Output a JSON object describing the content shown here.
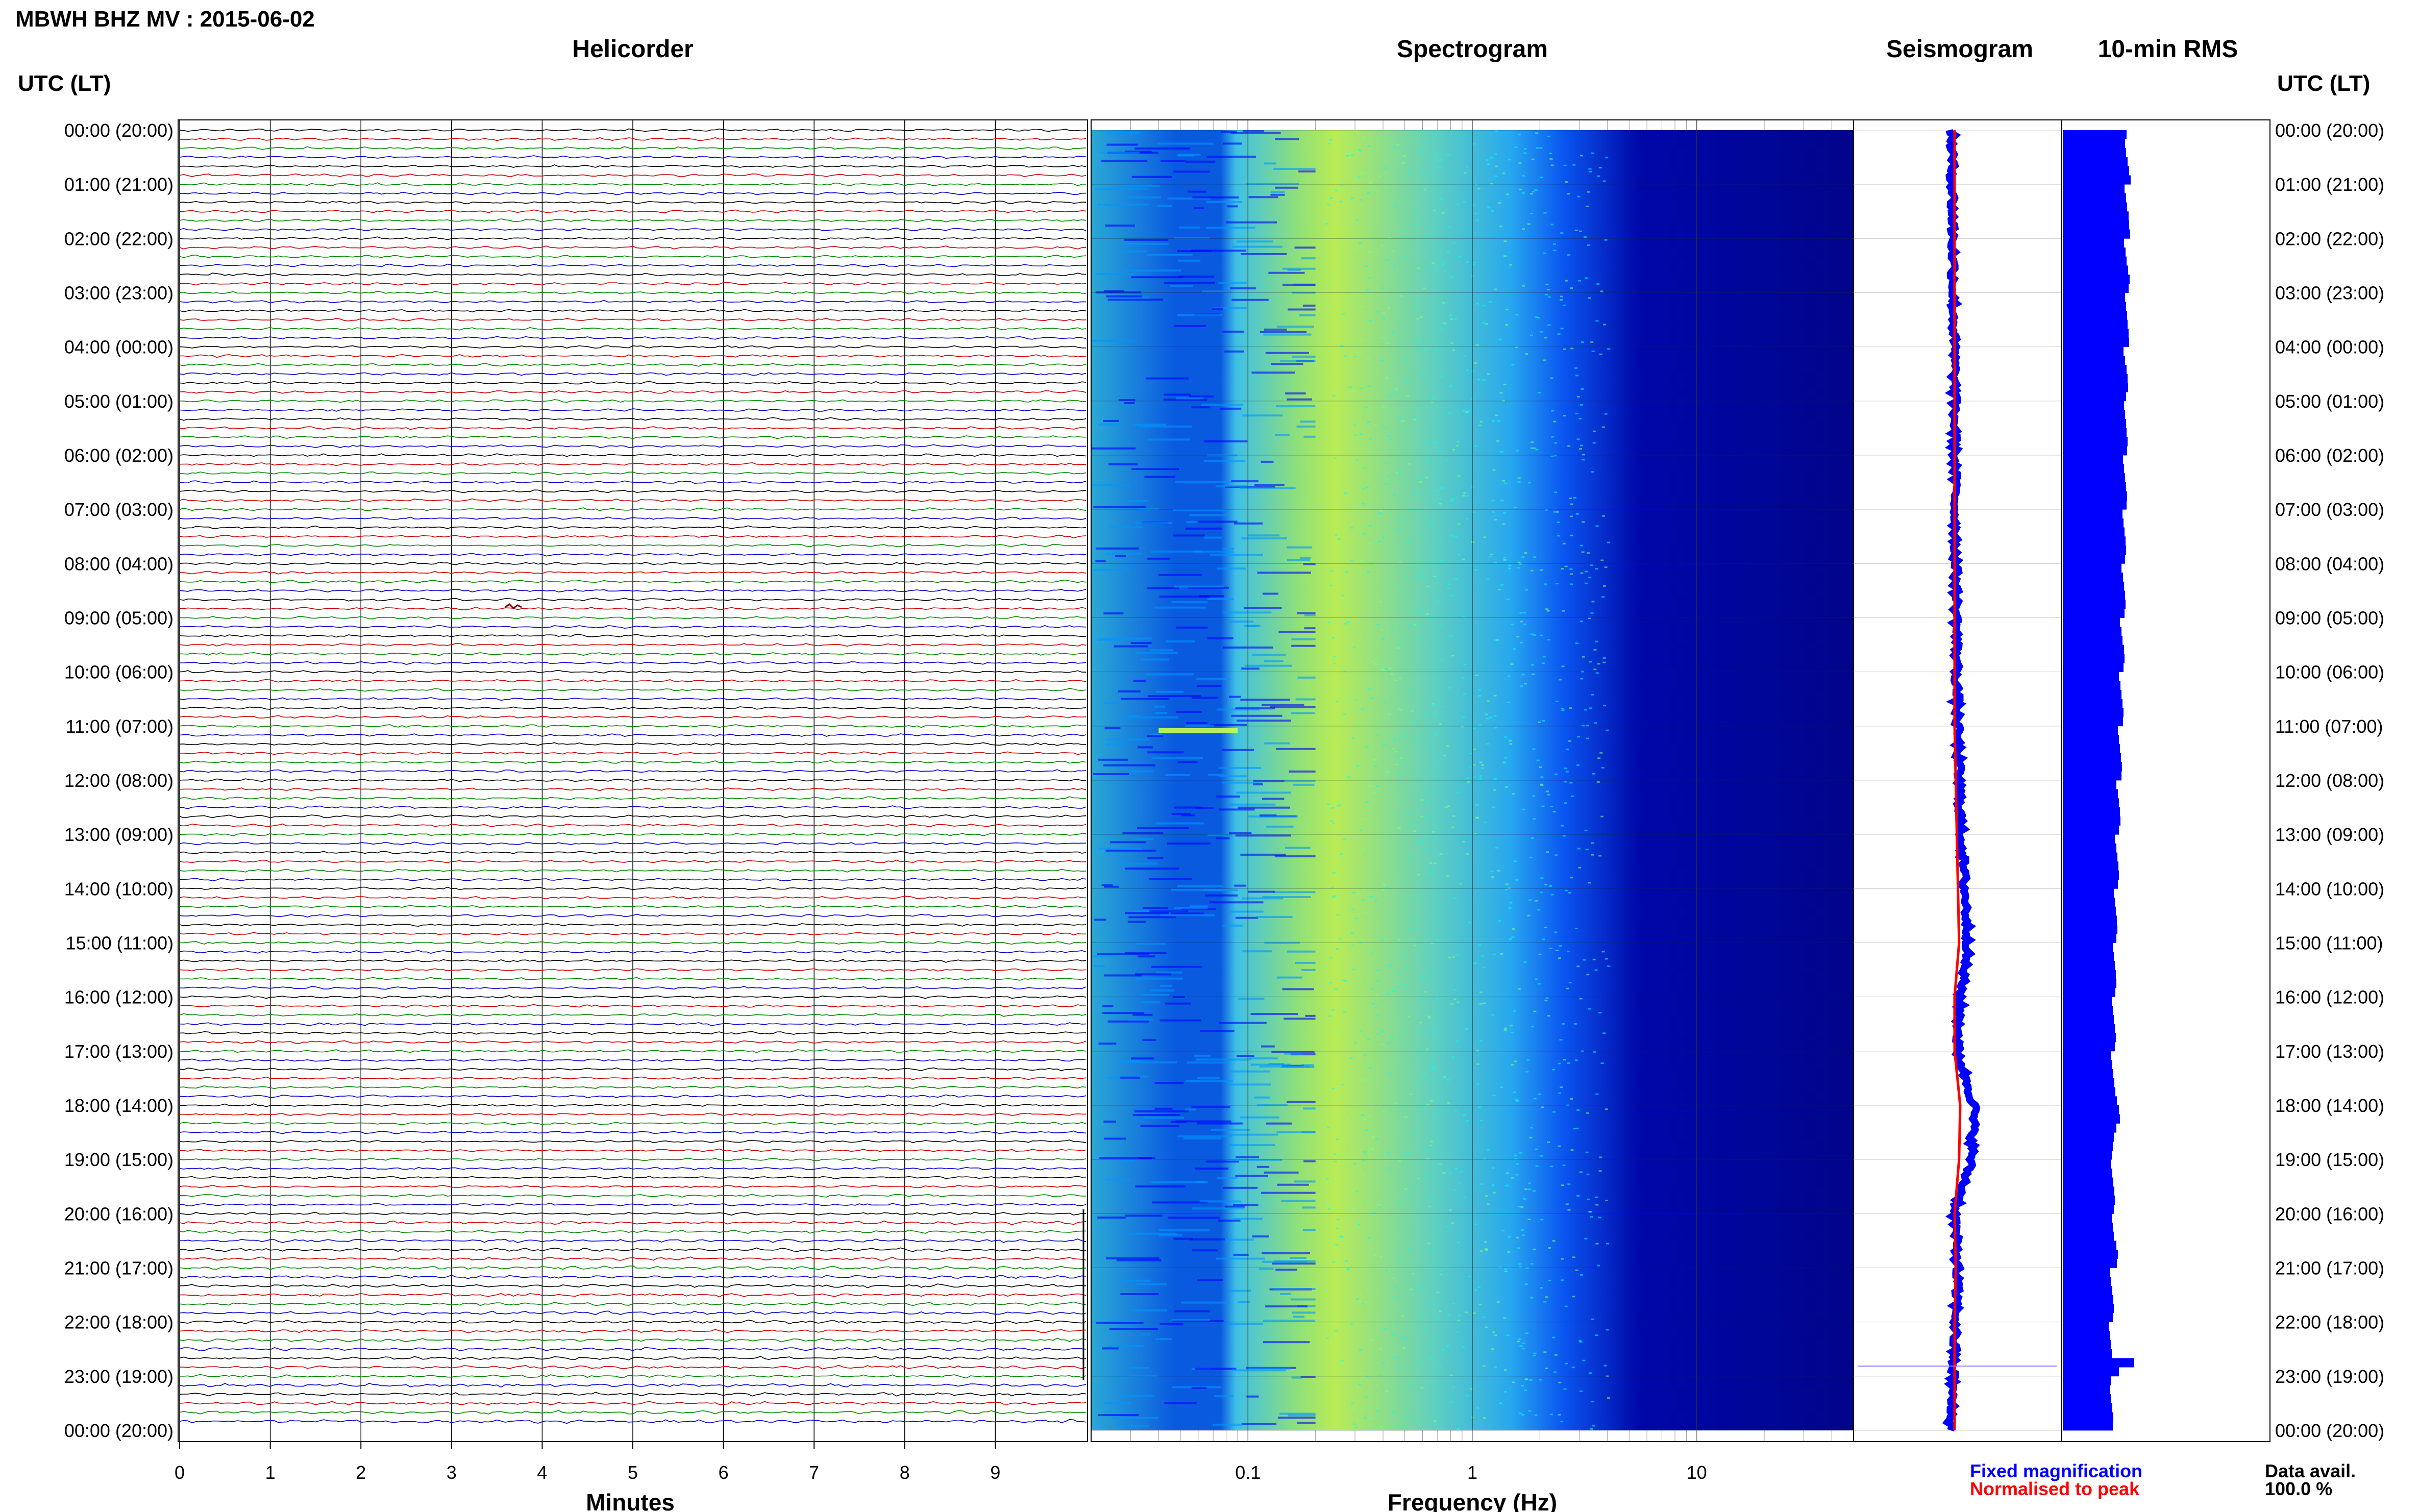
{
  "header": {
    "title": "MBWH BHZ MV : 2015-06-02"
  },
  "panels": {
    "helicorder": "Helicorder",
    "spectrogram": "Spectrogram",
    "seismogram": "Seismogram",
    "rms": "10-min RMS"
  },
  "axis": {
    "time_label_left": "UTC (LT)",
    "time_label_right": "UTC (LT)",
    "minutes_label": "Minutes",
    "frequency_label": "Frequency (Hz)"
  },
  "legend": {
    "fixed": "Fixed magnification",
    "normalised": "Normalised to peak",
    "fixed_color": "#0000ff",
    "normalised_color": "#ff0000"
  },
  "availability": {
    "label": "Data avail.",
    "value": "100.0 %"
  },
  "colors": {
    "trace_cycle": [
      "#000000",
      "#cc0000",
      "#008800",
      "#0000cc"
    ],
    "rms_bar": "#0000ff",
    "spectrogram_colormap": [
      "#00008b",
      "#0000ff",
      "#0096ff",
      "#00ffff",
      "#80ff80",
      "#ffff00"
    ]
  },
  "chart_data": [
    {
      "type": "line",
      "name": "helicorder",
      "xlabel": "Minutes",
      "xlim": [
        0,
        10
      ],
      "x_ticks": [
        "0",
        "1",
        "2",
        "3",
        "4",
        "5",
        "6",
        "7",
        "8",
        "9"
      ],
      "y_ticks": [
        "00:00 (20:00)",
        "01:00 (21:00)",
        "02:00 (22:00)",
        "03:00 (23:00)",
        "04:00 (00:00)",
        "05:00 (01:00)",
        "06:00 (02:00)",
        "07:00 (03:00)",
        "08:00 (04:00)",
        "09:00 (05:00)",
        "10:00 (06:00)",
        "11:00 (07:00)",
        "12:00 (08:00)",
        "13:00 (09:00)",
        "14:00 (10:00)",
        "15:00 (11:00)",
        "16:00 (12:00)",
        "17:00 (13:00)",
        "18:00 (14:00)",
        "19:00 (15:00)",
        "20:00 (16:00)",
        "21:00 (17:00)",
        "22:00 (18:00)",
        "23:00 (19:00)",
        "00:00 (20:00)"
      ],
      "lines_per_hour": 6
    },
    {
      "type": "heatmap",
      "name": "spectrogram",
      "xlabel": "Frequency (Hz)",
      "x_scale": "log",
      "xlim": [
        0.02,
        50
      ],
      "x_ticks": [
        {
          "value": 0.1,
          "label": "0.1"
        },
        {
          "value": 1,
          "label": "1"
        },
        {
          "value": 10,
          "label": "10"
        }
      ],
      "peak_band_hz": [
        0.2,
        0.35
      ],
      "energy_cutoff_hz": 3
    },
    {
      "type": "line",
      "name": "seismogram",
      "series": [
        {
          "name": "Fixed magnification",
          "color": "#0000ff",
          "hours": [
            0,
            1,
            2,
            3,
            4,
            5,
            6,
            7,
            8,
            9,
            10,
            11,
            12,
            13,
            14,
            15,
            16,
            17,
            18,
            19,
            20,
            21,
            22,
            23,
            24
          ],
          "offset": [
            -0.05,
            -0.04,
            -0.03,
            -0.02,
            -0.01,
            0.0,
            0.0,
            0.01,
            0.02,
            0.03,
            0.04,
            0.05,
            0.08,
            0.12,
            0.18,
            0.25,
            0.1,
            0.05,
            0.35,
            0.3,
            0.0,
            0.05,
            0.02,
            -0.03,
            -0.08
          ]
        },
        {
          "name": "Normalised to peak",
          "color": "#ff0000",
          "hours": [
            0,
            1,
            2,
            3,
            4,
            5,
            6,
            7,
            8,
            9,
            10,
            11,
            12,
            13,
            14,
            15,
            16,
            17,
            18,
            19,
            20,
            21,
            22,
            23,
            24
          ],
          "offset": [
            0.0,
            0.0,
            0.0,
            0.0,
            0.0,
            0.0,
            0.0,
            0.0,
            0.0,
            0.0,
            0.0,
            0.0,
            0.02,
            0.04,
            0.06,
            0.08,
            0.0,
            0.0,
            0.1,
            0.08,
            0.0,
            0.02,
            0.0,
            0.0,
            0.0
          ]
        }
      ]
    },
    {
      "type": "bar",
      "name": "10-min RMS",
      "orientation": "horizontal",
      "bins": 144,
      "values": [
        1.25,
        1.22,
        1.24,
        1.27,
        1.3,
        1.33,
        1.21,
        1.24,
        1.26,
        1.29,
        1.3,
        1.32,
        1.2,
        1.23,
        1.25,
        1.28,
        1.31,
        1.29,
        1.22,
        1.24,
        1.26,
        1.27,
        1.29,
        1.3,
        1.19,
        1.22,
        1.25,
        1.27,
        1.28,
        1.24,
        1.2,
        1.22,
        1.24,
        1.25,
        1.27,
        1.26,
        1.18,
        1.2,
        1.22,
        1.24,
        1.26,
        1.25,
        1.17,
        1.19,
        1.21,
        1.23,
        1.24,
        1.22,
        1.15,
        1.18,
        1.2,
        1.22,
        1.23,
        1.21,
        1.12,
        1.15,
        1.17,
        1.2,
        1.21,
        1.19,
        1.1,
        1.13,
        1.15,
        1.17,
        1.19,
        1.18,
        1.08,
        1.1,
        1.12,
        1.14,
        1.16,
        1.15,
        1.05,
        1.08,
        1.1,
        1.12,
        1.13,
        1.1,
        1.02,
        1.05,
        1.07,
        1.09,
        1.1,
        1.08,
        1.0,
        1.02,
        1.04,
        1.06,
        1.07,
        1.05,
        0.98,
        1.0,
        1.02,
        1.04,
        1.05,
        1.03,
        0.96,
        0.98,
        1.0,
        1.02,
        1.04,
        1.02,
        0.95,
        0.97,
        0.99,
        1.01,
        1.03,
        1.06,
        1.1,
        1.12,
        1.05,
        1.0,
        0.98,
        0.96,
        0.94,
        0.97,
        0.99,
        1.01,
        1.02,
        1.0,
        0.96,
        0.98,
        1.0,
        1.05,
        1.08,
        1.06,
        0.92,
        0.95,
        0.97,
        0.99,
        1.0,
        0.98,
        0.9,
        0.92,
        0.94,
        0.96,
        1.4,
        1.1,
        0.95,
        0.93,
        0.95,
        0.97,
        0.99,
        0.98
      ]
    }
  ]
}
